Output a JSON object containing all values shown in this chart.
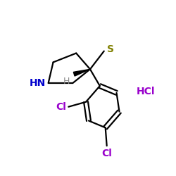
{
  "background_color": "#ffffff",
  "atom_colors": {
    "C": "#000000",
    "N": "#0000cc",
    "S": "#808000",
    "Cl": "#9900cc",
    "H": "#888888",
    "HCl": "#9900cc"
  },
  "bond_color": "#000000",
  "bond_lw": 1.6,
  "figsize": [
    2.5,
    2.5
  ],
  "dpi": 100,
  "font_size_atom": 10,
  "font_size_HCl": 10
}
